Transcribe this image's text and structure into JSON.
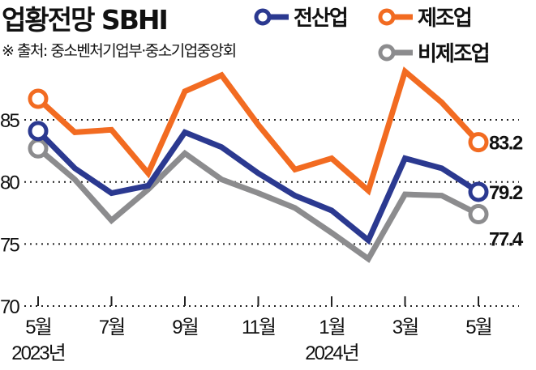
{
  "header": {
    "title": "업황전망 SBHI",
    "source": "※ 출처: 중소벤처기업부·중소기업중앙회"
  },
  "chart_data": {
    "type": "line",
    "title": "업황전망 SBHI",
    "x": [
      "2023-05",
      "2023-06",
      "2023-07",
      "2023-08",
      "2023-09",
      "2023-10",
      "2023-11",
      "2023-12",
      "2024-01",
      "2024-02",
      "2024-03",
      "2024-04",
      "2024-05"
    ],
    "xtick_labels": [
      "5월",
      "7월",
      "9월",
      "11월",
      "1월",
      "3월",
      "5월"
    ],
    "xtick_index": [
      0,
      2,
      4,
      6,
      8,
      10,
      12
    ],
    "year_labels": [
      {
        "label": "2023년",
        "index": 0
      },
      {
        "label": "2024년",
        "index": 8
      }
    ],
    "yticks": [
      "70",
      "75",
      "80",
      "85"
    ],
    "ytick_values": [
      70,
      75,
      80,
      85
    ],
    "ylim": [
      70,
      90
    ],
    "grid": true,
    "legend_position": "top-right",
    "series": [
      {
        "name": "전산업",
        "color": "#2b3990",
        "values": [
          84.1,
          81.1,
          79.1,
          79.7,
          84.0,
          82.8,
          80.7,
          78.9,
          77.7,
          75.3,
          81.9,
          81.1,
          79.2
        ],
        "end_label": "79.2"
      },
      {
        "name": "제조업",
        "color": "#f26b21",
        "values": [
          86.7,
          84.0,
          84.2,
          80.7,
          87.3,
          88.6,
          84.6,
          81.0,
          81.9,
          79.3,
          88.9,
          86.4,
          83.2
        ],
        "end_label": "83.2"
      },
      {
        "name": "비제조업",
        "color": "#8c8c8e",
        "values": [
          82.7,
          80.2,
          76.9,
          79.4,
          82.3,
          80.2,
          79.1,
          77.9,
          75.9,
          73.8,
          79.0,
          78.9,
          77.4
        ],
        "end_label": "77.4"
      }
    ]
  }
}
